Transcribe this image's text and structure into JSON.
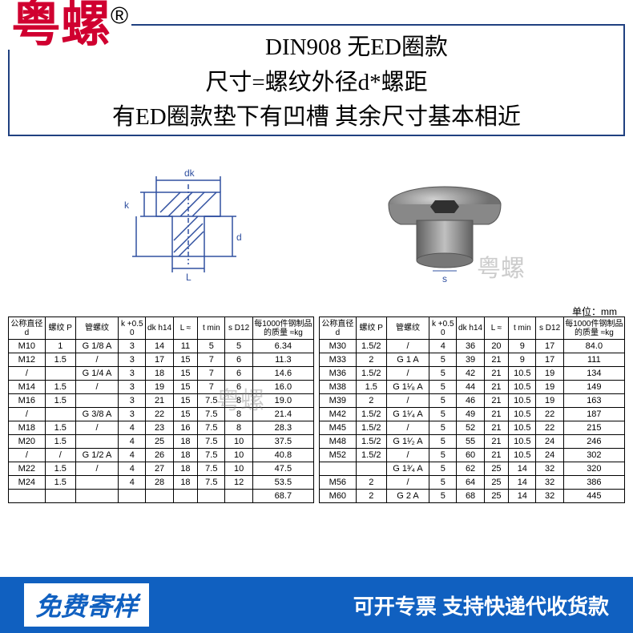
{
  "brand": "粤螺",
  "brand_symbol": "®",
  "title_line1": "DIN908 无ED圈款",
  "title_line2": "尺寸=螺纹外径d*螺距",
  "title_line3": "有ED圈款垫下有凹槽 其余尺寸基本相近",
  "watermark": "粤螺",
  "unit_label": "单位：mm",
  "diagram_labels": {
    "dk": "dk",
    "d": "d",
    "k": "k",
    "L": "L",
    "s": "s"
  },
  "headers": [
    "公称直径 d",
    "螺纹 P",
    "管螺纹",
    "k +0.5 0",
    "dk h14",
    "L ≈",
    "t min",
    "s D12",
    "每1000件钢制品的质量 ≈kg"
  ],
  "left_rows": [
    [
      "M10",
      "1",
      "G 1/8 A",
      "3",
      "14",
      "11",
      "5",
      "5",
      "6.34"
    ],
    [
      "M12",
      "1.5",
      "/",
      "3",
      "17",
      "15",
      "7",
      "6",
      "11.3"
    ],
    [
      "/",
      "",
      "G 1/4 A",
      "3",
      "18",
      "15",
      "7",
      "6",
      "14.6"
    ],
    [
      "M14",
      "1.5",
      "/",
      "3",
      "19",
      "15",
      "7",
      "6",
      "16.0"
    ],
    [
      "M16",
      "1.5",
      "",
      "3",
      "21",
      "15",
      "7.5",
      "8",
      "19.0"
    ],
    [
      "/",
      "",
      "G 3/8 A",
      "3",
      "22",
      "15",
      "7.5",
      "8",
      "21.4"
    ],
    [
      "M18",
      "1.5",
      "/",
      "4",
      "23",
      "16",
      "7.5",
      "8",
      "28.3"
    ],
    [
      "M20",
      "1.5",
      "",
      "4",
      "25",
      "18",
      "7.5",
      "10",
      "37.5"
    ],
    [
      "/",
      "/",
      "G 1/2 A",
      "4",
      "26",
      "18",
      "7.5",
      "10",
      "40.8"
    ],
    [
      "M22",
      "1.5",
      "/",
      "4",
      "27",
      "18",
      "7.5",
      "10",
      "47.5"
    ],
    [
      "M24",
      "1.5",
      "",
      "4",
      "28",
      "18",
      "7.5",
      "12",
      "53.5"
    ],
    [
      "",
      "",
      "",
      "",
      "",
      "",
      "",
      "",
      "68.7"
    ]
  ],
  "right_rows": [
    [
      "M30",
      "1.5/2",
      "/",
      "4",
      "36",
      "20",
      "9",
      "17",
      "84.0"
    ],
    [
      "M33",
      "2",
      "G 1 A",
      "5",
      "39",
      "21",
      "9",
      "17",
      "111"
    ],
    [
      "M36",
      "1.5/2",
      "/",
      "5",
      "42",
      "21",
      "10.5",
      "19",
      "134"
    ],
    [
      "M38",
      "1.5",
      "G 1¹⁄₈ A",
      "5",
      "44",
      "21",
      "10.5",
      "19",
      "149"
    ],
    [
      "M39",
      "2",
      "/",
      "5",
      "46",
      "21",
      "10.5",
      "19",
      "163"
    ],
    [
      "M42",
      "1.5/2",
      "G 1¹⁄₄ A",
      "5",
      "49",
      "21",
      "10.5",
      "22",
      "187"
    ],
    [
      "M45",
      "1.5/2",
      "/",
      "5",
      "52",
      "21",
      "10.5",
      "22",
      "215"
    ],
    [
      "M48",
      "1.5/2",
      "G 1¹⁄₂ A",
      "5",
      "55",
      "21",
      "10.5",
      "24",
      "246"
    ],
    [
      "M52",
      "1.5/2",
      "/",
      "5",
      "60",
      "21",
      "10.5",
      "24",
      "302"
    ],
    [
      "",
      "",
      "G 1³⁄₄ A",
      "5",
      "62",
      "25",
      "14",
      "32",
      "320"
    ],
    [
      "M56",
      "2",
      "/",
      "5",
      "64",
      "25",
      "14",
      "32",
      "386"
    ],
    [
      "M60",
      "2",
      "G 2 A",
      "5",
      "68",
      "25",
      "14",
      "32",
      "445"
    ]
  ],
  "footer_left": "免费寄样",
  "footer_right": "可开专票 支持快递代收货款",
  "colors": {
    "brand": "#d00030",
    "frame": "#204080",
    "footer_bg": "#1060c0",
    "diagram_stroke": "#3050a0"
  }
}
